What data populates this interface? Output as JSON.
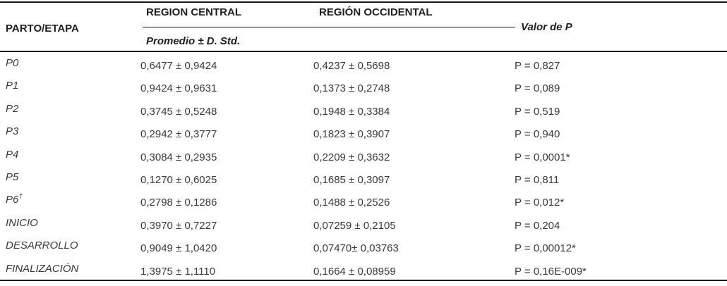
{
  "table": {
    "col1_header": "PARTO/ETAPA",
    "group_headers": [
      "REGION CENTRAL",
      "REGIÓN OCCIDENTAL"
    ],
    "subheader": "Promedio ± D. Std.",
    "p_header": "Valor de P",
    "rows": [
      {
        "etapa": "P0",
        "etapa_sup": "",
        "central": "0,6477 ± 0,9424",
        "occidental": "0,4237 ± 0,5698",
        "p": "P = 0,827"
      },
      {
        "etapa": "P1",
        "etapa_sup": "",
        "central": "0,9424 ± 0,9631",
        "occidental": "0,1373 ± 0,2748",
        "p": "P = 0,089"
      },
      {
        "etapa": "P2",
        "etapa_sup": "",
        "central": "0,3745 ± 0,5248",
        "occidental": "0,1948 ± 0,3384",
        "p": "P = 0,519"
      },
      {
        "etapa": "P3",
        "etapa_sup": "",
        "central": "0,2942 ± 0,3777",
        "occidental": "0,1823 ± 0,3907",
        "p": "P = 0,940"
      },
      {
        "etapa": "P4",
        "etapa_sup": "",
        "central": "0,3084 ± 0,2935",
        "occidental": "0,2209 ± 0,3632",
        "p": "P = 0,0001*"
      },
      {
        "etapa": "P5",
        "etapa_sup": "",
        "central": "0,1270 ± 0,6025",
        "occidental": "0,1685 ± 0,3097",
        "p": "P = 0,811"
      },
      {
        "etapa": "P6",
        "etapa_sup": "†",
        "central": "0,2798 ± 0,1286",
        "occidental": "0,1488 ± 0,2526",
        "p": "P = 0,012*"
      },
      {
        "etapa": "INICIO",
        "etapa_sup": "",
        "central": "0,3970 ± 0,7227",
        "occidental": "0,07259 ± 0,2105",
        "p": "P = 0,204"
      },
      {
        "etapa": "DESARROLLO",
        "etapa_sup": "",
        "central": "0,9049 ± 1,0420",
        "occidental": "0,07470± 0,03763",
        "p": "P = 0,00012*"
      },
      {
        "etapa": "FINALIZACIÓN",
        "etapa_sup": "",
        "central": "1,3975 ± 1,1110",
        "occidental": "0,1664 ± 0,08959",
        "p": "P = 0,16E-009*"
      }
    ]
  },
  "colors": {
    "background": "#ffffff",
    "text_header": "#1f1f1f",
    "text_body": "#3a3a3a",
    "rule": "#1c1c1c"
  }
}
